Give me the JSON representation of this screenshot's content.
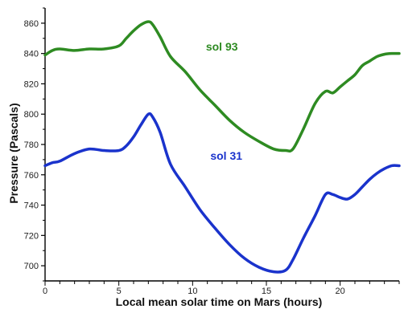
{
  "chart_data": {
    "type": "line",
    "title": "",
    "xlabel": "Local mean solar time on Mars (hours)",
    "ylabel": "Pressure (Pascals)",
    "xlim": [
      0,
      24
    ],
    "ylim": [
      690,
      870
    ],
    "x_ticks": [
      0,
      5,
      10,
      15,
      20
    ],
    "y_ticks": [
      700,
      720,
      740,
      760,
      780,
      800,
      820,
      840,
      860
    ],
    "grid": false,
    "legend": "none",
    "series": [
      {
        "name": "sol 93",
        "color": "#2e8b22",
        "x": [
          0,
          0.5,
          1,
          2,
          3,
          4,
          5,
          5.5,
          6,
          6.5,
          7,
          7.3,
          7.8,
          8.5,
          9.5,
          10.5,
          11.5,
          12.5,
          13.5,
          14.5,
          15.5,
          16.3,
          16.8,
          17.5,
          18.3,
          19,
          19.5,
          20,
          20.5,
          21,
          21.5,
          22,
          22.5,
          23,
          23.5,
          24
        ],
        "y": [
          839,
          842,
          843,
          842,
          843,
          843,
          845,
          850,
          855,
          859,
          861,
          859,
          851,
          838,
          828,
          816,
          806,
          796,
          788,
          782,
          777,
          776,
          777,
          790,
          807,
          815,
          814,
          818,
          822,
          826,
          832,
          835,
          838,
          839.5,
          840,
          840
        ]
      },
      {
        "name": "sol 31",
        "color": "#1a33cc",
        "x": [
          0,
          0.5,
          1,
          2,
          3,
          4,
          5,
          5.5,
          6,
          6.5,
          7,
          7.3,
          7.8,
          8.5,
          9.5,
          10.5,
          11.5,
          12.5,
          13.5,
          14.5,
          15.5,
          16.3,
          16.8,
          17.5,
          18.3,
          19,
          19.5,
          20,
          20.5,
          21,
          21.5,
          22,
          22.5,
          23,
          23.5,
          24
        ],
        "y": [
          766,
          768,
          769,
          774,
          777,
          776,
          776,
          779,
          785,
          793,
          800,
          798,
          788,
          767,
          752,
          737,
          725,
          714,
          705,
          699,
          696,
          697,
          704,
          718,
          733,
          747,
          747,
          745,
          744,
          747,
          752,
          757,
          761,
          764,
          766,
          766
        ]
      }
    ],
    "annotations": [
      {
        "text": "sol 93",
        "x": 10.9,
        "y": 842
      },
      {
        "text": "sol 31",
        "x": 11.2,
        "y": 770
      }
    ]
  }
}
